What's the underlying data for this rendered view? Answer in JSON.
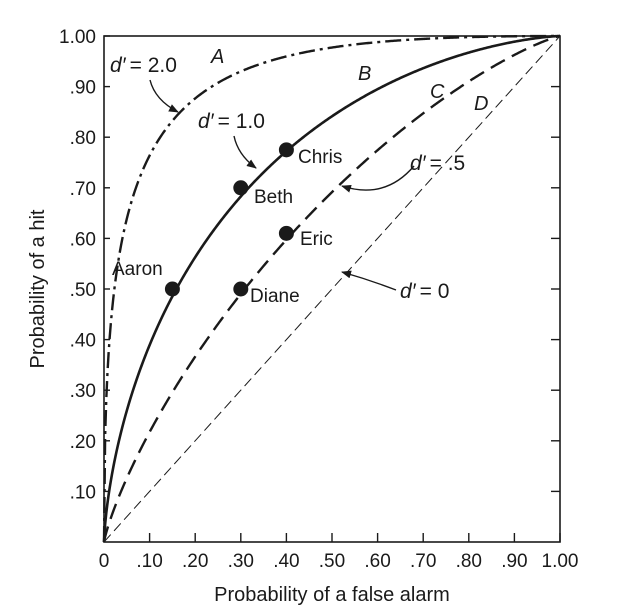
{
  "chart_data": {
    "type": "line",
    "title": "",
    "xlabel": "Probability of a false alarm",
    "ylabel": "Probability of a hit",
    "xlim": [
      0,
      1.0
    ],
    "ylim": [
      0,
      1.0
    ],
    "x_ticks": [
      0,
      0.1,
      0.2,
      0.3,
      0.4,
      0.5,
      0.6,
      0.7,
      0.8,
      0.9,
      1.0
    ],
    "x_tick_labels": [
      "0",
      ".10",
      ".20",
      ".30",
      ".40",
      ".50",
      ".60",
      ".70",
      ".80",
      ".90",
      "1.00"
    ],
    "y_ticks": [
      0.1,
      0.2,
      0.3,
      0.4,
      0.5,
      0.6,
      0.7,
      0.8,
      0.9,
      1.0
    ],
    "y_tick_labels": [
      ".10",
      ".20",
      ".30",
      ".40",
      ".50",
      ".60",
      ".70",
      ".80",
      ".90",
      "1.00"
    ],
    "grid": false,
    "legend": "none",
    "series": [
      {
        "name": "A",
        "d_prime": 2.0,
        "d_prime_label": "= 2.0",
        "style": "dash-dot"
      },
      {
        "name": "B",
        "d_prime": 1.0,
        "d_prime_label": "= 1.0",
        "style": "solid"
      },
      {
        "name": "C",
        "d_prime": 0.5,
        "d_prime_label": "= .5",
        "style": "dashed"
      },
      {
        "name": "D",
        "d_prime": 0.0,
        "d_prime_label": "= 0",
        "style": "thin-dashed"
      }
    ],
    "points": [
      {
        "label": "Aaron",
        "x": 0.15,
        "y": 0.5
      },
      {
        "label": "Beth",
        "x": 0.3,
        "y": 0.7
      },
      {
        "label": "Chris",
        "x": 0.4,
        "y": 0.775
      },
      {
        "label": "Diane",
        "x": 0.3,
        "y": 0.5
      },
      {
        "label": "Eric",
        "x": 0.4,
        "y": 0.61
      }
    ],
    "d_prime_symbol": "d′"
  }
}
